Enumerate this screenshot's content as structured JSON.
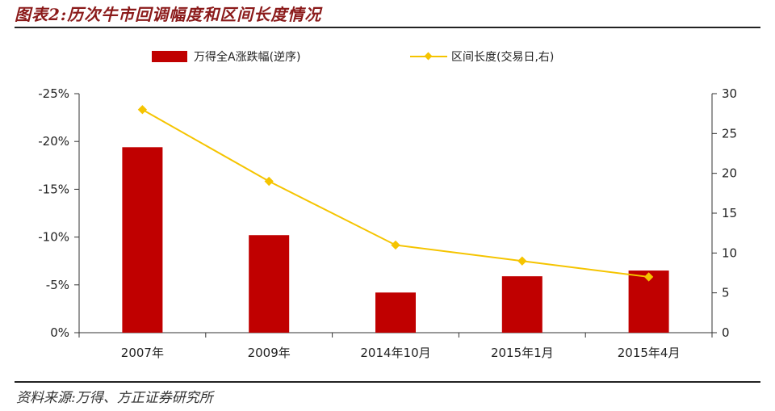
{
  "title": "图表2:历次牛市回调幅度和区间长度情况",
  "source": "资料来源:万得、方正证券研究所",
  "colors": {
    "bar": "#c00000",
    "line": "#f5c400",
    "title": "#8b1a1a"
  },
  "chart_data": {
    "type": "bar",
    "categories": [
      "2007年",
      "2009年",
      "2014年10月",
      "2015年1月",
      "2015年4月"
    ],
    "series": [
      {
        "name": "万得全A涨跌幅(逆序)",
        "type": "bar",
        "axis": "left",
        "values": [
          -19.4,
          -10.2,
          -4.2,
          -5.9,
          -6.5
        ]
      },
      {
        "name": "区间长度(交易日,右)",
        "type": "line",
        "axis": "right",
        "values": [
          28,
          19,
          11,
          9,
          7
        ]
      }
    ],
    "y_left": {
      "ticks": [
        "-25%",
        "-20%",
        "-15%",
        "-10%",
        "-5%",
        "0%"
      ],
      "range": [
        0,
        -25
      ],
      "reversed": true
    },
    "y_right": {
      "ticks": [
        "30",
        "25",
        "20",
        "15",
        "10",
        "5",
        "0"
      ],
      "range": [
        0,
        30
      ]
    },
    "legend_position": "top",
    "grid": false
  }
}
